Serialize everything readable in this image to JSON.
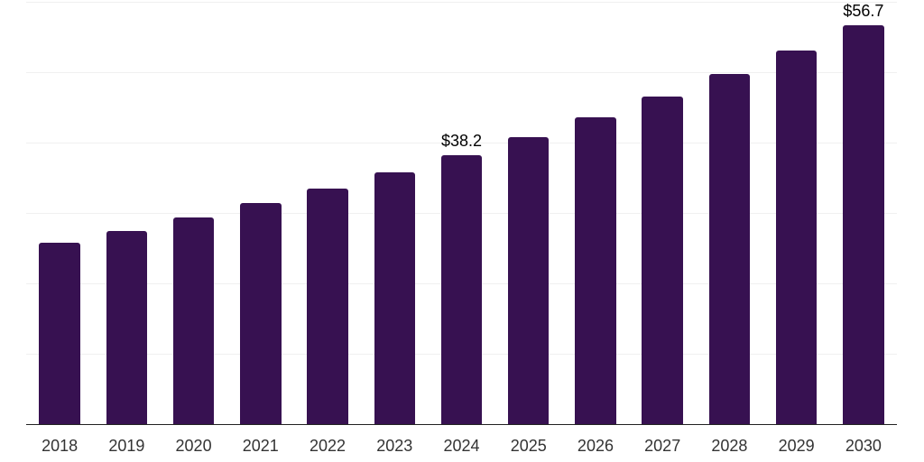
{
  "chart_data": {
    "type": "bar",
    "title": "",
    "xlabel": "",
    "ylabel": "",
    "categories": [
      "2018",
      "2019",
      "2020",
      "2021",
      "2022",
      "2023",
      "2024",
      "2025",
      "2026",
      "2027",
      "2028",
      "2029",
      "2030"
    ],
    "values": [
      25.8,
      27.5,
      29.4,
      31.4,
      33.5,
      35.8,
      38.2,
      40.8,
      43.6,
      46.5,
      49.7,
      53.1,
      56.7
    ],
    "point_labels": [
      "",
      "",
      "",
      "",
      "",
      "",
      "$38.2",
      "",
      "",
      "",
      "",
      "",
      "$56.7"
    ],
    "ylim": [
      0,
      60
    ],
    "gridline_step": 10,
    "grid": true,
    "legend": false,
    "bar_color": "#371151",
    "axis_line_color": "#222222",
    "gridline_color": "#f0f0f0",
    "value_label_color": "#000000",
    "tick_label_color": "#333333"
  }
}
